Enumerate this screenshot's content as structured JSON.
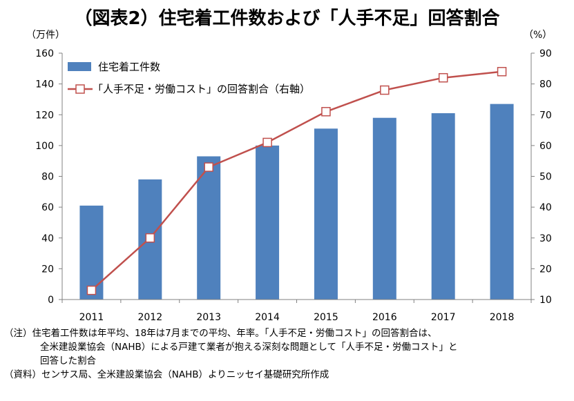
{
  "title": "（図表2）住宅着工件数および「人手不足」回答割合",
  "chart_data": {
    "type": "bar",
    "categories": [
      "2011",
      "2012",
      "2013",
      "2014",
      "2015",
      "2016",
      "2017",
      "2018"
    ],
    "series": [
      {
        "name": "住宅着工件数",
        "type": "bar",
        "axis": "left",
        "color": "#4f81bd",
        "values": [
          61,
          78,
          93,
          100,
          111,
          118,
          121,
          127
        ]
      },
      {
        "name": "「人手不足・労働コスト」の回答割合（右軸）",
        "type": "line",
        "axis": "right",
        "color": "#c0504d",
        "values": [
          13,
          30,
          53,
          61,
          71,
          78,
          82,
          84
        ]
      }
    ],
    "y_left": {
      "unit": "（万件）",
      "min": 0,
      "max": 160,
      "step": 20,
      "ticks": [
        "0",
        "20",
        "40",
        "60",
        "80",
        "100",
        "120",
        "140",
        "160"
      ]
    },
    "y_right": {
      "unit": "（%）",
      "min": 10,
      "max": 90,
      "step": 10,
      "ticks": [
        "10",
        "20",
        "30",
        "40",
        "50",
        "60",
        "70",
        "80",
        "90"
      ]
    },
    "grid": false,
    "legend": "top-left"
  },
  "notes": {
    "line1": "（注）住宅着工件数は年平均、18年は7月までの平均、年率。「人手不足・労働コスト」の回答割合は、",
    "line2": "全米建設業協会（NAHB）による戸建て業者が抱える深刻な問題として「人手不足・労働コスト」と",
    "line3": "回答した割合",
    "source": "（資料）センサス局、全米建設業協会（NAHB）よりニッセイ基礎研究所作成"
  }
}
